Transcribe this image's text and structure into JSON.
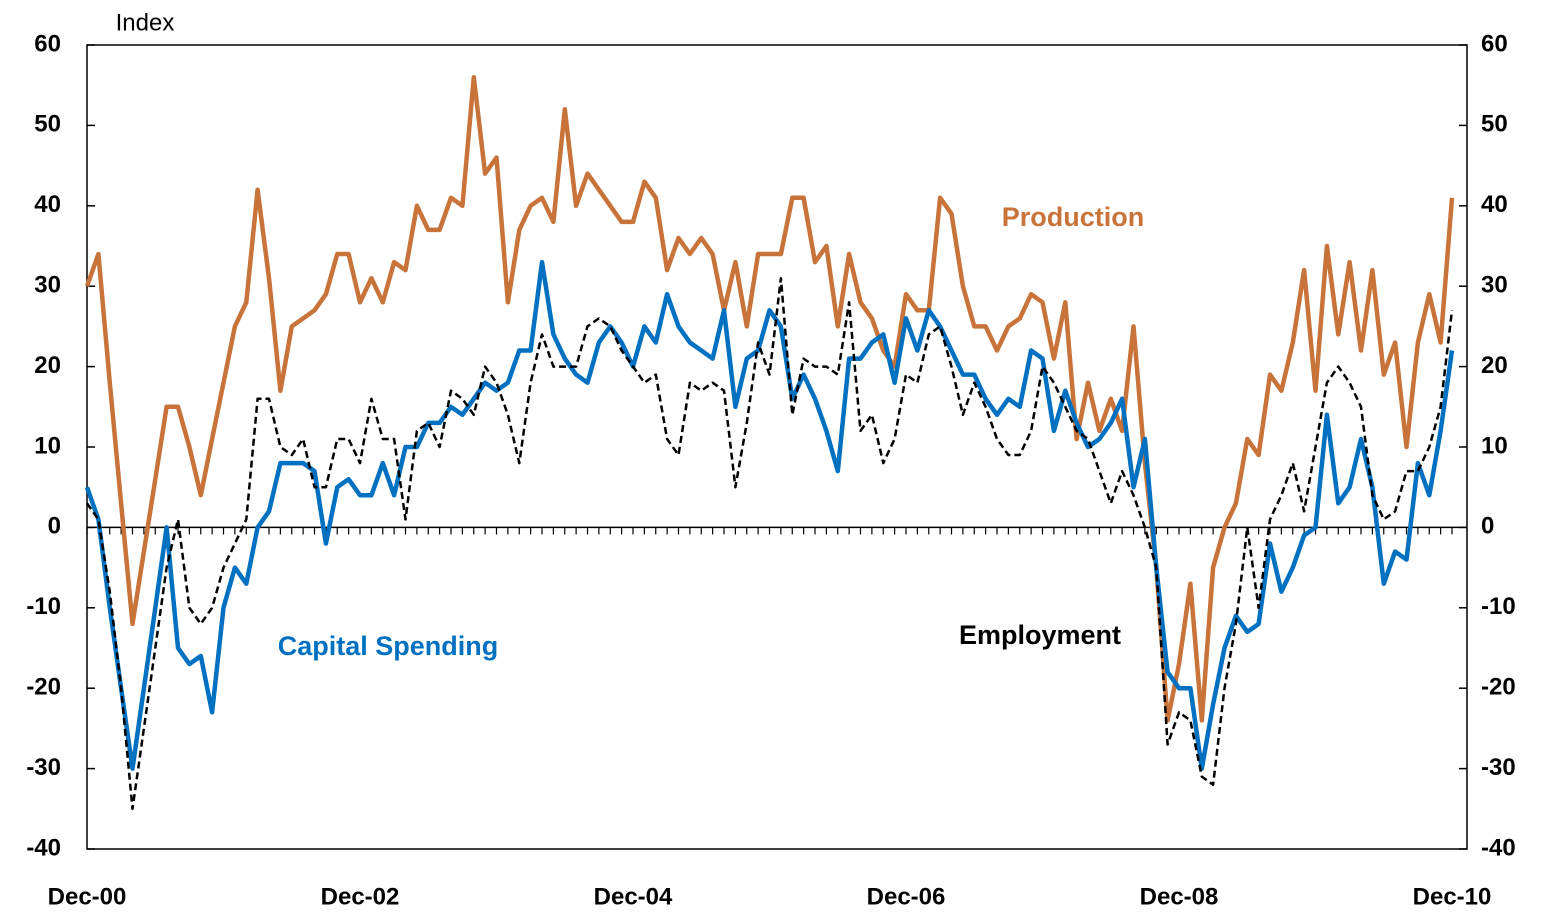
{
  "chart_data": {
    "type": "line",
    "y_label": "Index",
    "categories": [
      "Dec-00",
      null,
      null,
      null,
      null,
      null,
      null,
      null,
      null,
      null,
      null,
      null,
      null,
      null,
      null,
      null,
      null,
      null,
      null,
      null,
      null,
      null,
      null,
      null,
      "Dec-02",
      null,
      null,
      null,
      null,
      null,
      null,
      null,
      null,
      null,
      null,
      null,
      null,
      null,
      null,
      null,
      null,
      null,
      null,
      null,
      null,
      null,
      null,
      null,
      "Dec-04",
      null,
      null,
      null,
      null,
      null,
      null,
      null,
      null,
      null,
      null,
      null,
      null,
      null,
      null,
      null,
      null,
      null,
      null,
      null,
      null,
      null,
      null,
      null,
      "Dec-06",
      null,
      null,
      null,
      null,
      null,
      null,
      null,
      null,
      null,
      null,
      null,
      null,
      null,
      null,
      null,
      null,
      null,
      null,
      null,
      null,
      null,
      null,
      null,
      "Dec-08",
      null,
      null,
      null,
      null,
      null,
      null,
      null,
      null,
      null,
      null,
      null,
      null,
      null,
      null,
      null,
      null,
      null,
      null,
      null,
      null,
      null,
      null,
      null,
      "Dec-10"
    ],
    "series": [
      {
        "name": "Production",
        "color": "#c8733a",
        "line_style": "solid",
        "values": [
          30,
          34,
          18,
          3,
          -12,
          -3,
          6,
          15,
          15,
          10,
          4,
          11,
          18,
          25,
          28,
          42,
          31,
          17,
          25,
          26,
          27,
          29,
          34,
          34,
          28,
          31,
          28,
          33,
          32,
          40,
          37,
          37,
          41,
          40,
          56,
          44,
          46,
          28,
          37,
          40,
          41,
          38,
          52,
          40,
          44,
          42,
          40,
          38,
          38,
          43,
          41,
          32,
          36,
          34,
          36,
          34,
          27,
          33,
          25,
          34,
          34,
          34,
          41,
          41,
          33,
          35,
          25,
          34,
          28,
          26,
          22,
          20,
          29,
          27,
          27,
          41,
          39,
          30,
          25,
          25,
          22,
          25,
          26,
          29,
          28,
          21,
          28,
          11,
          18,
          12,
          16,
          12,
          25,
          8,
          -5,
          -24,
          -17,
          -7,
          -24,
          -5,
          0,
          3,
          11,
          9,
          19,
          17,
          23,
          32,
          17,
          35,
          24,
          33,
          22,
          32,
          19,
          23,
          10,
          23,
          29,
          23,
          41
        ]
      },
      {
        "name": "Capital Spending",
        "color": "#0070c0",
        "line_style": "solid",
        "values": [
          5,
          1,
          -10,
          -20,
          -30,
          -20,
          -10,
          0,
          -15,
          -17,
          -16,
          -23,
          -10,
          -5,
          -7,
          0,
          2,
          8,
          8,
          8,
          7,
          -2,
          5,
          6,
          4,
          4,
          8,
          4,
          10,
          10,
          13,
          13,
          15,
          14,
          16,
          18,
          17,
          18,
          22,
          22,
          33,
          24,
          21,
          19,
          18,
          23,
          25,
          23,
          20,
          25,
          23,
          29,
          25,
          23,
          22,
          21,
          27,
          15,
          21,
          22,
          27,
          25,
          16,
          19,
          16,
          12,
          7,
          21,
          21,
          23,
          24,
          18,
          26,
          22,
          27,
          25,
          22,
          19,
          19,
          16,
          14,
          16,
          15,
          22,
          21,
          12,
          17,
          13,
          10,
          11,
          13,
          16,
          5,
          11,
          -5,
          -18,
          -20,
          -20,
          -30,
          -22,
          -15,
          -11,
          -13,
          -12,
          -2,
          -8,
          -5,
          -1,
          0,
          14,
          3,
          5,
          11,
          5,
          -7,
          -3,
          -4,
          8,
          4,
          12,
          22
        ]
      },
      {
        "name": "Employment",
        "color": "#000000",
        "line_style": "dashed",
        "values": [
          3,
          1,
          -8,
          -20,
          -35,
          -25,
          -15,
          -5,
          1,
          -10,
          -12,
          -10,
          -5,
          -2,
          1,
          16,
          16,
          10,
          9,
          11,
          5,
          5,
          11,
          11,
          8,
          16,
          11,
          11,
          1,
          12,
          13,
          10,
          17,
          16,
          14,
          20,
          18,
          14,
          8,
          18,
          24,
          20,
          20,
          20,
          25,
          26,
          25,
          22,
          20,
          18,
          19,
          11,
          9,
          18,
          17,
          18,
          17,
          5,
          13,
          23,
          19,
          31,
          14,
          21,
          20,
          20,
          19,
          28,
          12,
          14,
          8,
          11,
          19,
          18,
          24,
          25,
          20,
          14,
          18,
          15,
          11,
          9,
          9,
          12,
          20,
          18,
          15,
          12,
          11,
          7,
          3,
          7,
          4,
          0,
          -5,
          -27,
          -23,
          -24,
          -31,
          -32,
          -20,
          -12,
          0,
          -10,
          1,
          4,
          8,
          2,
          10,
          18,
          20,
          18,
          15,
          4,
          1,
          2,
          7,
          7,
          10,
          15,
          27
        ]
      }
    ],
    "ylim": [
      -40,
      60
    ],
    "yticks": [
      -40,
      -30,
      -20,
      -10,
      0,
      10,
      20,
      30,
      40,
      50,
      60
    ],
    "y2lim": [
      -40,
      60
    ],
    "y2ticks": [
      -40,
      -30,
      -20,
      -10,
      0,
      10,
      20,
      30,
      40,
      50,
      60
    ],
    "grid": false
  }
}
